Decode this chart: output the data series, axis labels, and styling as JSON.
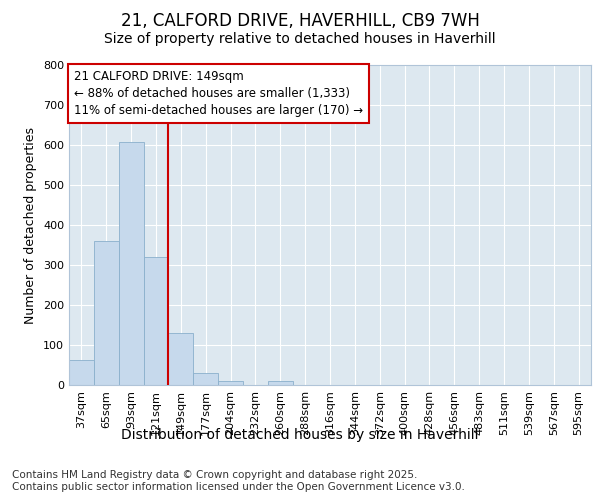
{
  "title1": "21, CALFORD DRIVE, HAVERHILL, CB9 7WH",
  "title2": "Size of property relative to detached houses in Haverhill",
  "xlabel": "Distribution of detached houses by size in Haverhill",
  "ylabel": "Number of detached properties",
  "footnote": "Contains HM Land Registry data © Crown copyright and database right 2025.\nContains public sector information licensed under the Open Government Licence v3.0.",
  "bin_labels": [
    "37sqm",
    "65sqm",
    "93sqm",
    "121sqm",
    "149sqm",
    "177sqm",
    "204sqm",
    "232sqm",
    "260sqm",
    "288sqm",
    "316sqm",
    "344sqm",
    "372sqm",
    "400sqm",
    "428sqm",
    "456sqm",
    "483sqm",
    "511sqm",
    "539sqm",
    "567sqm",
    "595sqm"
  ],
  "bar_values": [
    63,
    360,
    607,
    320,
    130,
    30,
    10,
    0,
    10,
    0,
    0,
    0,
    0,
    0,
    0,
    0,
    0,
    0,
    0,
    0,
    0
  ],
  "bar_color": "#c6d9ec",
  "bar_edge_color": "#8ab0cc",
  "property_line_index": 4,
  "property_line_color": "#cc0000",
  "annotation_text": "21 CALFORD DRIVE: 149sqm\n← 88% of detached houses are smaller (1,333)\n11% of semi-detached houses are larger (170) →",
  "annotation_box_color": "#cc0000",
  "ylim": [
    0,
    800
  ],
  "yticks": [
    0,
    100,
    200,
    300,
    400,
    500,
    600,
    700,
    800
  ],
  "fig_bg": "#ffffff",
  "plot_bg": "#dde8f0",
  "title1_fontsize": 12,
  "title2_fontsize": 10,
  "xlabel_fontsize": 10,
  "ylabel_fontsize": 9,
  "annotation_fontsize": 8.5,
  "tick_fontsize": 8,
  "footnote_fontsize": 7.5
}
